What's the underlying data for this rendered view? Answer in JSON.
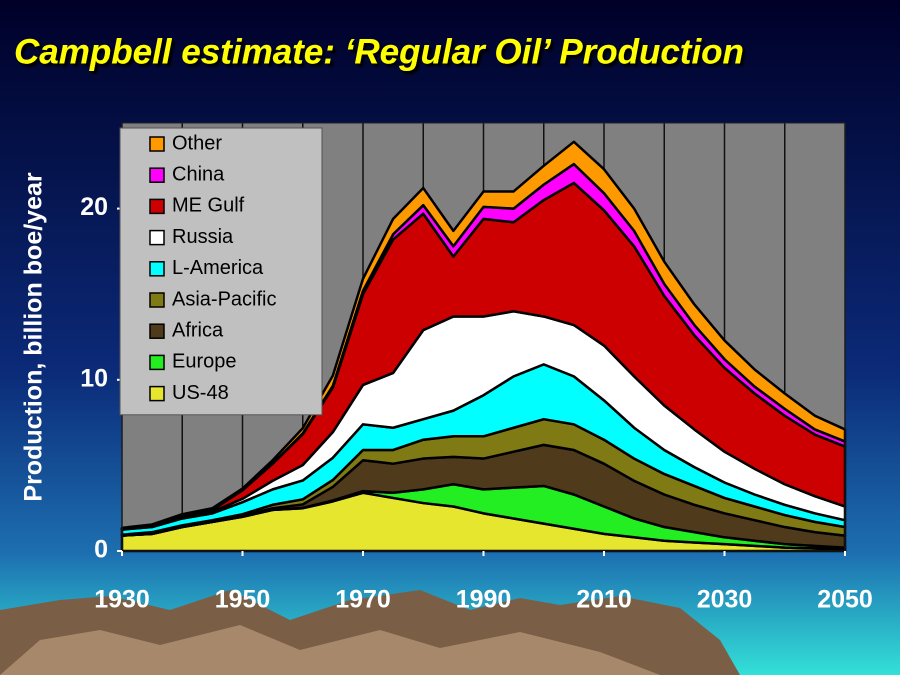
{
  "chart_data": {
    "type": "stacked_area",
    "title": "Campbell estimate: ‘Regular Oil’ Production",
    "y_label": "Production, billion boe/year",
    "x": [
      1930,
      1935,
      1940,
      1945,
      1950,
      1955,
      1960,
      1965,
      1970,
      1975,
      1980,
      1985,
      1990,
      1995,
      2000,
      2005,
      2010,
      2015,
      2020,
      2025,
      2030,
      2035,
      2040,
      2045,
      2050
    ],
    "series": [
      {
        "name": "US-48",
        "color": "#e6e62e",
        "values": [
          0.9,
          1.0,
          1.4,
          1.7,
          2.0,
          2.4,
          2.5,
          2.9,
          3.4,
          3.1,
          2.8,
          2.6,
          2.2,
          1.9,
          1.6,
          1.3,
          1.0,
          0.8,
          0.6,
          0.5,
          0.4,
          0.3,
          0.2,
          0.15,
          0.1
        ]
      },
      {
        "name": "Europe",
        "color": "#22ee22",
        "values": [
          0,
          0,
          0,
          0,
          0,
          0,
          0.02,
          0.05,
          0.1,
          0.3,
          0.8,
          1.3,
          1.4,
          1.8,
          2.2,
          2.0,
          1.6,
          1.1,
          0.8,
          0.6,
          0.4,
          0.3,
          0.2,
          0.15,
          0.1
        ]
      },
      {
        "name": "Africa",
        "color": "#4f3a1c",
        "values": [
          0,
          0,
          0,
          0,
          0.05,
          0.1,
          0.2,
          0.8,
          1.8,
          1.7,
          1.8,
          1.6,
          1.8,
          2.1,
          2.4,
          2.6,
          2.5,
          2.2,
          1.9,
          1.6,
          1.4,
          1.2,
          1.0,
          0.8,
          0.7
        ]
      },
      {
        "name": "Asia-Pacific",
        "color": "#7f7a14",
        "values": [
          0.05,
          0.1,
          0.1,
          0.1,
          0.1,
          0.2,
          0.3,
          0.4,
          0.6,
          0.8,
          1.1,
          1.2,
          1.3,
          1.4,
          1.5,
          1.5,
          1.4,
          1.3,
          1.2,
          1.1,
          0.9,
          0.8,
          0.7,
          0.6,
          0.5
        ]
      },
      {
        "name": "L-America",
        "color": "#00ffff",
        "values": [
          0.3,
          0.3,
          0.4,
          0.4,
          0.7,
          0.9,
          1.1,
          1.3,
          1.5,
          1.3,
          1.2,
          1.5,
          2.4,
          3.0,
          3.2,
          2.8,
          2.3,
          1.8,
          1.4,
          1.1,
          0.9,
          0.7,
          0.6,
          0.5,
          0.4
        ]
      },
      {
        "name": "Russia",
        "color": "#ffffff",
        "values": [
          0.05,
          0.1,
          0.15,
          0.1,
          0.2,
          0.5,
          0.9,
          1.5,
          2.3,
          3.2,
          5.2,
          5.5,
          4.6,
          3.8,
          2.8,
          3.0,
          3.2,
          3.0,
          2.6,
          2.2,
          1.8,
          1.5,
          1.2,
          1.0,
          0.8
        ]
      },
      {
        "name": "ME Gulf",
        "color": "#cc0000",
        "values": [
          0,
          0,
          0.05,
          0.1,
          0.5,
          1.0,
          1.8,
          2.6,
          5.3,
          7.8,
          6.8,
          3.5,
          5.7,
          5.2,
          6.8,
          8.3,
          7.9,
          7.6,
          6.4,
          5.5,
          4.9,
          4.4,
          4.0,
          3.6,
          3.5
        ]
      },
      {
        "name": "China",
        "color": "#ff00ff",
        "values": [
          0,
          0,
          0,
          0,
          0,
          0,
          0.05,
          0.1,
          0.2,
          0.3,
          0.5,
          0.6,
          0.7,
          0.8,
          0.9,
          1.1,
          1.0,
          0.9,
          0.7,
          0.6,
          0.5,
          0.4,
          0.4,
          0.3,
          0.3
        ]
      },
      {
        "name": "Other",
        "color": "#ff9900",
        "values": [
          0.05,
          0.05,
          0.05,
          0.1,
          0.1,
          0.2,
          0.3,
          0.6,
          0.7,
          0.9,
          1.0,
          0.9,
          0.9,
          1.0,
          1.1,
          1.3,
          1.4,
          1.3,
          1.3,
          1.2,
          1.1,
          1.0,
          0.9,
          0.8,
          0.7
        ]
      }
    ],
    "xlim": [
      1930,
      2050
    ],
    "xticks": [
      1930,
      1950,
      1970,
      1990,
      2010,
      2030,
      2050
    ],
    "xgrid": [
      1930,
      1940,
      1950,
      1960,
      1970,
      1980,
      1990,
      2000,
      2010,
      2020,
      2030,
      2040,
      2050
    ],
    "ylim": [
      0,
      25
    ],
    "yticks": [
      0,
      10,
      20
    ],
    "legend": "upper left",
    "plot_background": "#808080"
  }
}
